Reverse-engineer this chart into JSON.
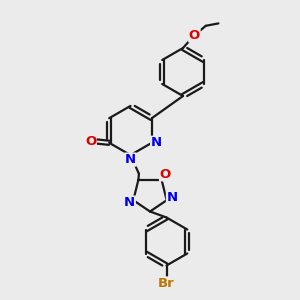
{
  "bg_color": "#ebebeb",
  "bond_color": "#1a1a1a",
  "bond_width": 1.6,
  "atom_colors": {
    "N": "#0000ee",
    "O": "#dd0000",
    "Br": "#bb7700",
    "C": "#1a1a1a"
  },
  "font_size_atom": 9.5
}
